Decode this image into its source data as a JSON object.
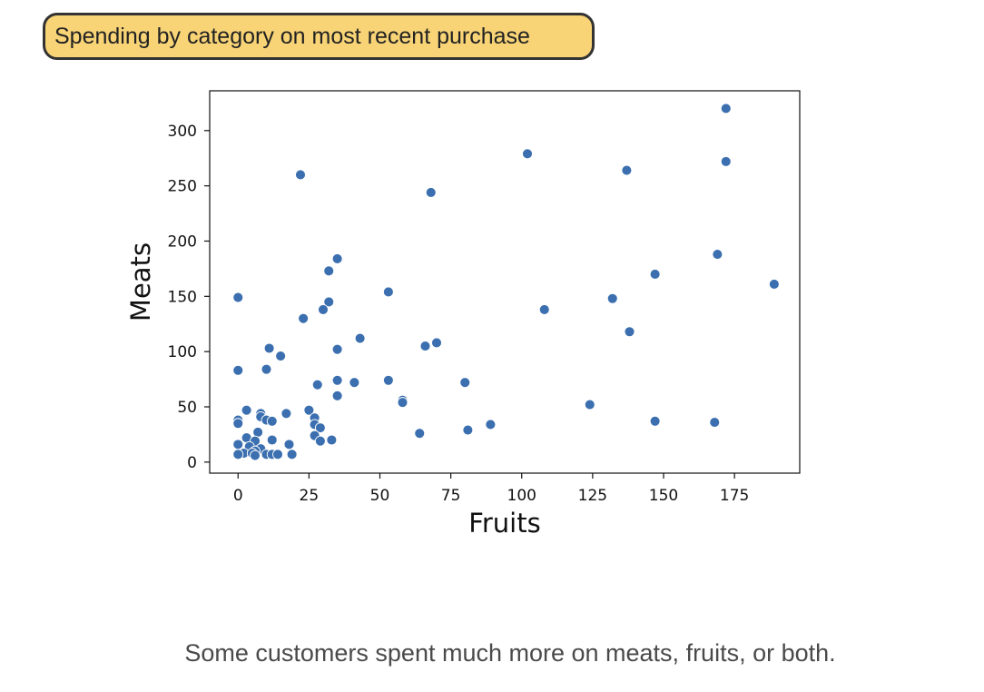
{
  "header": {
    "title": "Spending by category on most recent purchase"
  },
  "caption": "Some customers spent much more on meats, fruits, or both.",
  "chart_data": {
    "type": "scatter",
    "title": "",
    "xlabel": "Fruits",
    "ylabel": "Meats",
    "xlim": [
      -10,
      198
    ],
    "ylim": [
      -10,
      336
    ],
    "xticks": [
      0,
      25,
      50,
      75,
      100,
      125,
      150,
      175
    ],
    "yticks": [
      0,
      50,
      100,
      150,
      200,
      250,
      300
    ],
    "grid": false,
    "legend": "none",
    "marker_color": "#3b6faf",
    "points": [
      [
        172,
        320
      ],
      [
        102,
        279
      ],
      [
        137,
        264
      ],
      [
        172,
        272
      ],
      [
        22,
        260
      ],
      [
        68,
        244
      ],
      [
        169,
        188
      ],
      [
        147,
        170
      ],
      [
        189,
        161
      ],
      [
        132,
        148
      ],
      [
        108,
        138
      ],
      [
        138,
        118
      ],
      [
        35,
        184
      ],
      [
        32,
        173
      ],
      [
        53,
        154
      ],
      [
        32,
        145
      ],
      [
        30,
        138
      ],
      [
        23,
        130
      ],
      [
        0,
        149
      ],
      [
        70,
        108
      ],
      [
        66,
        105
      ],
      [
        43,
        112
      ],
      [
        35,
        102
      ],
      [
        11,
        103
      ],
      [
        15,
        96
      ],
      [
        0,
        83
      ],
      [
        10,
        84
      ],
      [
        80,
        72
      ],
      [
        53,
        74
      ],
      [
        35,
        74
      ],
      [
        41,
        72
      ],
      [
        28,
        70
      ],
      [
        35,
        60
      ],
      [
        58,
        56
      ],
      [
        58,
        54
      ],
      [
        124,
        52
      ],
      [
        25,
        47
      ],
      [
        3,
        47
      ],
      [
        8,
        44
      ],
      [
        17,
        44
      ],
      [
        8,
        41
      ],
      [
        10,
        38
      ],
      [
        12,
        37
      ],
      [
        27,
        40
      ],
      [
        0,
        38
      ],
      [
        0,
        35
      ],
      [
        27,
        34
      ],
      [
        89,
        34
      ],
      [
        147,
        37
      ],
      [
        168,
        36
      ],
      [
        29,
        31
      ],
      [
        81,
        29
      ],
      [
        64,
        26
      ],
      [
        7,
        27
      ],
      [
        27,
        24
      ],
      [
        3,
        22
      ],
      [
        12,
        20
      ],
      [
        29,
        19
      ],
      [
        33,
        20
      ],
      [
        6,
        19
      ],
      [
        0,
        16
      ],
      [
        18,
        16
      ],
      [
        4,
        14
      ],
      [
        8,
        12
      ],
      [
        6,
        10
      ],
      [
        2,
        8
      ],
      [
        0,
        7
      ],
      [
        5,
        8
      ],
      [
        10,
        7
      ],
      [
        12,
        7
      ],
      [
        14,
        7
      ],
      [
        19,
        7
      ],
      [
        6,
        6
      ]
    ]
  }
}
